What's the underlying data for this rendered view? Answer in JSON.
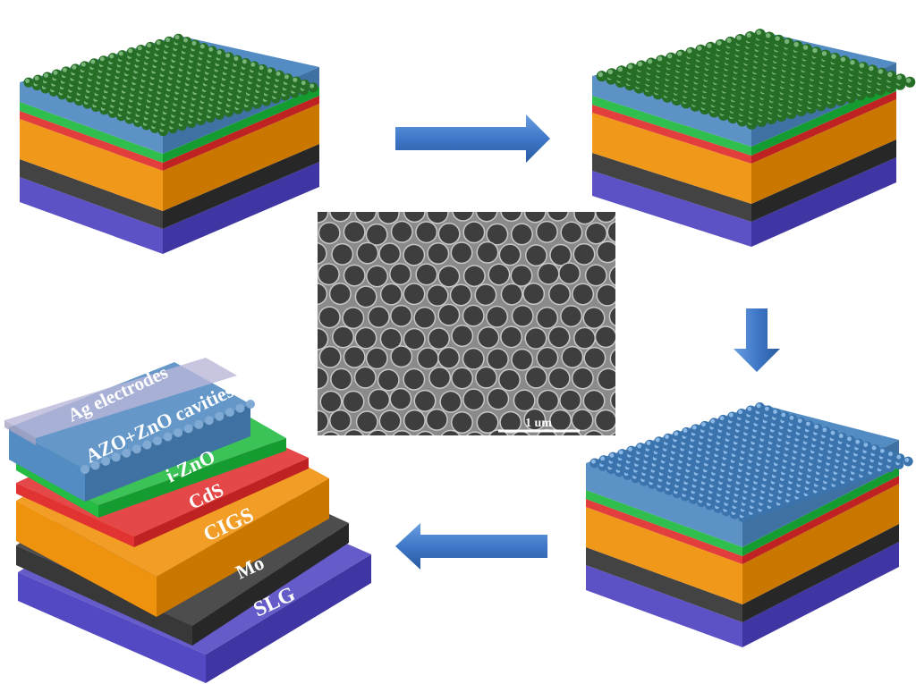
{
  "layers": {
    "ag": {
      "label": "Ag electrodes",
      "color": "#b9b6d8"
    },
    "azo": {
      "label": "AZO+ZnO cavities",
      "color": "#4a86c0"
    },
    "izno": {
      "label": "i-ZnO",
      "color": "#19b83a"
    },
    "cds": {
      "label": "CdS",
      "color": "#e02828"
    },
    "cigs": {
      "label": "CIGS",
      "color": "#ee8c00"
    },
    "mo": {
      "label": "Mo",
      "color": "#2e2e2e"
    },
    "slg": {
      "label": "SLG",
      "color": "#4a3fc0"
    }
  },
  "colors": {
    "green_spheres": "#2f8a2f",
    "blue_spheres": "#4a90d8",
    "arrow": "#3f78c8"
  },
  "sem_image": {
    "scale_bar_label": "1 um"
  },
  "arrows": [
    "arrow-right",
    "arrow-down",
    "arrow-left"
  ]
}
